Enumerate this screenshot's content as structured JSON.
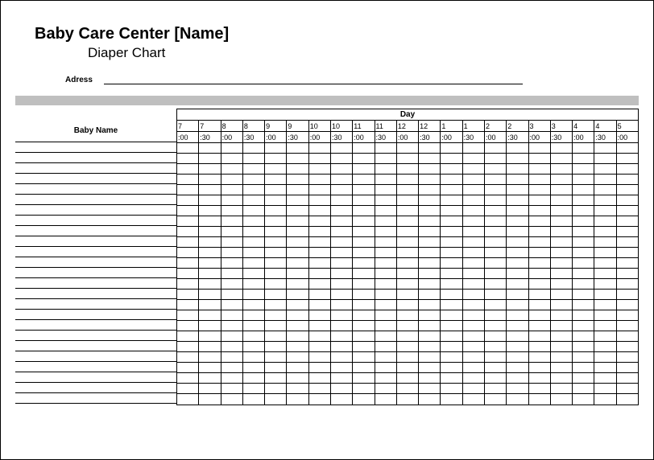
{
  "header": {
    "title": "Baby Care Center [Name]",
    "subtitle": "Diaper Chart",
    "address_label": "Adress"
  },
  "chart": {
    "day_label": "Day",
    "baby_name_label": "Baby Name",
    "hours": [
      "7",
      "7",
      "8",
      "8",
      "9",
      "9",
      "10",
      "10",
      "11",
      "11",
      "12",
      "12",
      "1",
      "1",
      "2",
      "2",
      "3",
      "3",
      "4",
      "4",
      "5"
    ],
    "minutes": [
      ":00",
      ":30",
      ":00",
      ":30",
      ":00",
      ":30",
      ":00",
      ":30",
      ":00",
      ":30",
      ":00",
      ":30",
      ":00",
      ":30",
      ":00",
      ":30",
      ":00",
      ":30",
      ":00",
      ":30",
      ":00"
    ],
    "num_rows": 25,
    "colors": {
      "border": "#000000",
      "gray_bar": "#bfbfbf",
      "background": "#ffffff"
    },
    "fonts": {
      "title_size_pt": 20,
      "title_weight": "bold",
      "subtitle_size_pt": 17,
      "label_size_pt": 10,
      "cell_size_pt": 9
    }
  }
}
